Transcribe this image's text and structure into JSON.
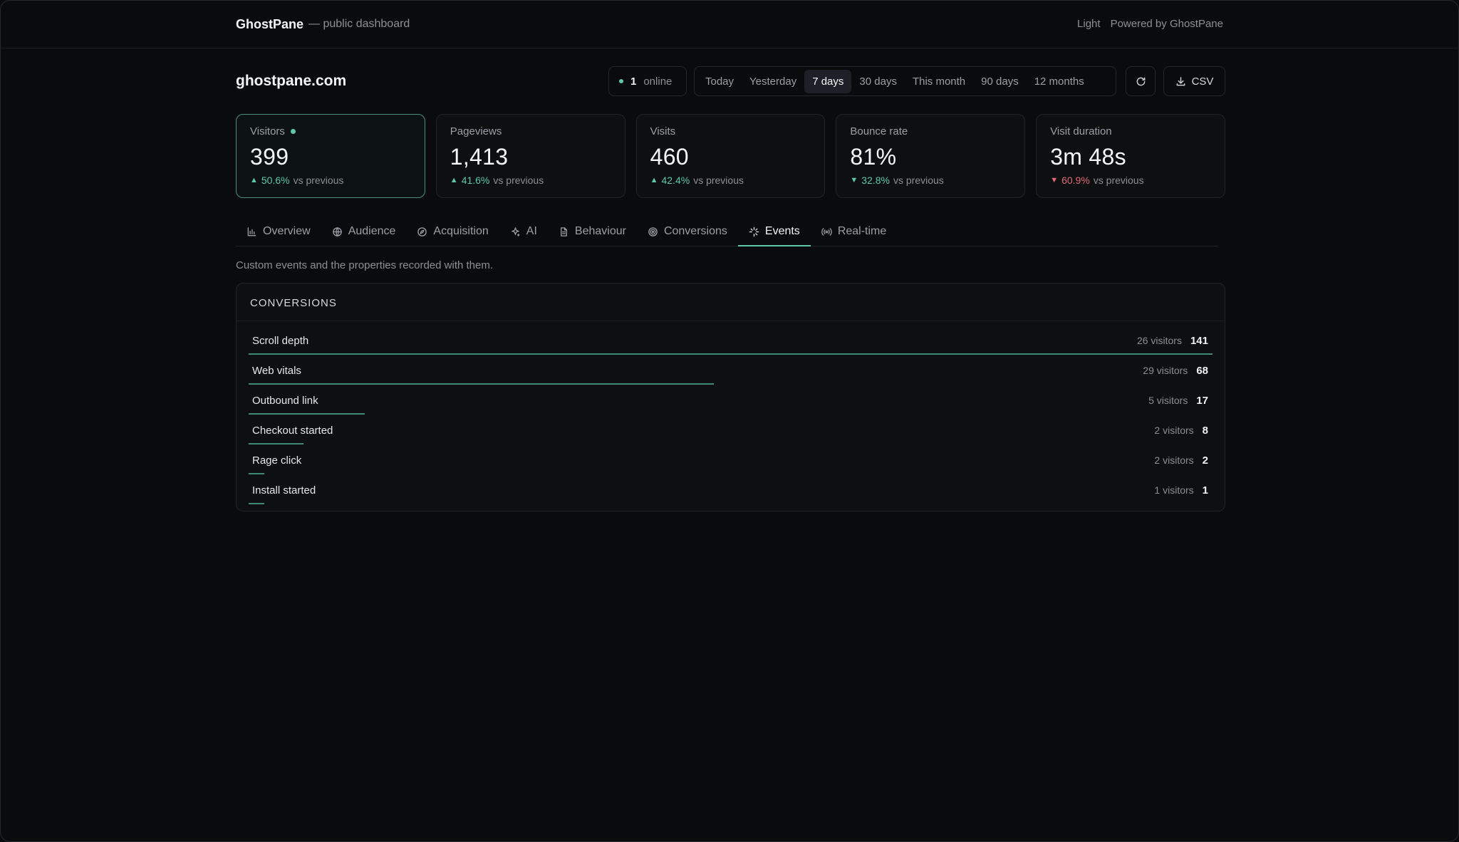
{
  "header": {
    "brand": "GhostPane",
    "subtitle": "— public dashboard",
    "theme_toggle": "Light",
    "powered_by": "Powered by GhostPane"
  },
  "site": {
    "name": "ghostpane.com",
    "online_count": "1",
    "online_label": "online"
  },
  "ranges": [
    "Today",
    "Yesterday",
    "7 days",
    "30 days",
    "This month",
    "90 days",
    "12 months"
  ],
  "active_range": "7 days",
  "toolbar": {
    "csv_label": "CSV"
  },
  "stats": [
    {
      "label": "Visitors",
      "value": "399",
      "delta": "50.6%",
      "direction": "up",
      "suffix": "vs previous",
      "active": true
    },
    {
      "label": "Pageviews",
      "value": "1,413",
      "delta": "41.6%",
      "direction": "up",
      "suffix": "vs previous"
    },
    {
      "label": "Visits",
      "value": "460",
      "delta": "42.4%",
      "direction": "up",
      "suffix": "vs previous"
    },
    {
      "label": "Bounce rate",
      "value": "81%",
      "delta": "32.8%",
      "direction": "down-good",
      "suffix": "vs previous"
    },
    {
      "label": "Visit duration",
      "value": "3m 48s",
      "delta": "60.9%",
      "direction": "down",
      "suffix": "vs previous"
    }
  ],
  "tabs": [
    {
      "label": "Overview",
      "icon": "bar-chart-icon"
    },
    {
      "label": "Audience",
      "icon": "globe-icon"
    },
    {
      "label": "Acquisition",
      "icon": "compass-icon"
    },
    {
      "label": "AI",
      "icon": "sparkle-icon"
    },
    {
      "label": "Behaviour",
      "icon": "document-icon"
    },
    {
      "label": "Conversions",
      "icon": "target-icon"
    },
    {
      "label": "Events",
      "icon": "spark-icon",
      "active": true
    },
    {
      "label": "Real-time",
      "icon": "broadcast-icon"
    }
  ],
  "description": "Custom events and the properties recorded with them.",
  "conversions": {
    "title": "CONVERSIONS",
    "rows": [
      {
        "label": "Scroll depth",
        "visitors": "26 visitors",
        "count": "141",
        "value": 141
      },
      {
        "label": "Web vitals",
        "visitors": "29 visitors",
        "count": "68",
        "value": 68
      },
      {
        "label": "Outbound link",
        "visitors": "5 visitors",
        "count": "17",
        "value": 17
      },
      {
        "label": "Checkout started",
        "visitors": "2 visitors",
        "count": "8",
        "value": 8
      },
      {
        "label": "Rage click",
        "visitors": "2 visitors",
        "count": "2",
        "value": 2
      },
      {
        "label": "Install started",
        "visitors": "1 visitors",
        "count": "1",
        "value": 1
      }
    ]
  },
  "colors": {
    "accent": "#5ec9a4",
    "negative": "#e26a7a",
    "bar": "#3f8a72"
  }
}
